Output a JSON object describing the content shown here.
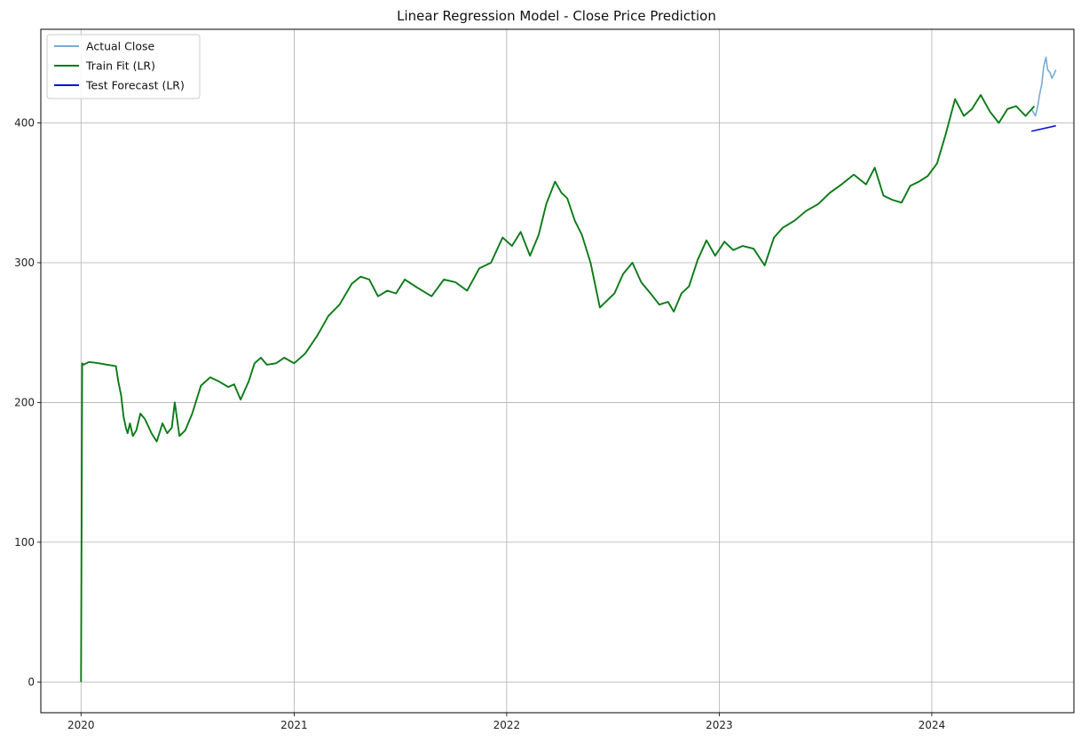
{
  "chart_data": {
    "type": "line",
    "title": "Linear Regression Model - Close Price Prediction",
    "xlabel": "",
    "ylabel": "",
    "xlim": [
      "2019-10-24",
      "2024-09-01"
    ],
    "ylim": [
      -22,
      467
    ],
    "x_ticks": [
      {
        "date": "2020-01-01",
        "label": "2020"
      },
      {
        "date": "2021-01-01",
        "label": "2021"
      },
      {
        "date": "2022-01-01",
        "label": "2022"
      },
      {
        "date": "2023-01-01",
        "label": "2023"
      },
      {
        "date": "2024-01-01",
        "label": "2024"
      }
    ],
    "y_ticks": [
      0,
      100,
      200,
      300,
      400
    ],
    "grid": true,
    "legend": "top-left",
    "series": [
      {
        "name": "Actual Close",
        "color": "#78abd6",
        "x": [
          "2024-06-20",
          "2024-06-27",
          "2024-07-01",
          "2024-07-04",
          "2024-07-08",
          "2024-07-11",
          "2024-07-15",
          "2024-07-18",
          "2024-07-22",
          "2024-07-25",
          "2024-07-29",
          "2024-08-01"
        ],
        "y": [
          410,
          405,
          412,
          420,
          428,
          440,
          447,
          438,
          436,
          432,
          435,
          438
        ]
      },
      {
        "name": "Train Fit (LR)",
        "color": "#0b7a17",
        "x": [
          "2020-01-01",
          "2020-01-03",
          "2020-01-05",
          "2020-01-15",
          "2020-02-01",
          "2020-02-15",
          "2020-03-01",
          "2020-03-05",
          "2020-03-10",
          "2020-03-14",
          "2020-03-18",
          "2020-03-21",
          "2020-03-25",
          "2020-03-30",
          "2020-04-05",
          "2020-04-12",
          "2020-04-20",
          "2020-05-01",
          "2020-05-10",
          "2020-05-20",
          "2020-05-28",
          "2020-06-05",
          "2020-06-10",
          "2020-06-18",
          "2020-06-28",
          "2020-07-10",
          "2020-07-25",
          "2020-08-10",
          "2020-08-25",
          "2020-09-10",
          "2020-09-20",
          "2020-10-01",
          "2020-10-15",
          "2020-10-25",
          "2020-11-05",
          "2020-11-15",
          "2020-12-01",
          "2020-12-15",
          "2021-01-01",
          "2021-01-20",
          "2021-02-10",
          "2021-03-01",
          "2021-03-20",
          "2021-04-10",
          "2021-04-25",
          "2021-05-10",
          "2021-05-25",
          "2021-06-10",
          "2021-06-25",
          "2021-07-10",
          "2021-08-01",
          "2021-08-25",
          "2021-09-15",
          "2021-10-05",
          "2021-10-25",
          "2021-11-15",
          "2021-12-05",
          "2021-12-25",
          "2022-01-10",
          "2022-01-25",
          "2022-02-10",
          "2022-02-25",
          "2022-03-10",
          "2022-03-25",
          "2022-04-05",
          "2022-04-15",
          "2022-04-28",
          "2022-05-10",
          "2022-05-25",
          "2022-06-10",
          "2022-06-20",
          "2022-07-05",
          "2022-07-20",
          "2022-08-05",
          "2022-08-20",
          "2022-09-05",
          "2022-09-20",
          "2022-10-05",
          "2022-10-15",
          "2022-10-28",
          "2022-11-10",
          "2022-11-25",
          "2022-12-10",
          "2022-12-25",
          "2023-01-10",
          "2023-01-25",
          "2023-02-10",
          "2023-03-01",
          "2023-03-20",
          "2023-04-05",
          "2023-04-20",
          "2023-05-10",
          "2023-05-30",
          "2023-06-20",
          "2023-07-10",
          "2023-07-30",
          "2023-08-20",
          "2023-09-10",
          "2023-09-25",
          "2023-10-10",
          "2023-10-25",
          "2023-11-10",
          "2023-11-25",
          "2023-12-10",
          "2023-12-25",
          "2024-01-10",
          "2024-01-25",
          "2024-02-10",
          "2024-02-25",
          "2024-03-10",
          "2024-03-25",
          "2024-04-10",
          "2024-04-25",
          "2024-05-10",
          "2024-05-25",
          "2024-06-10",
          "2024-06-25"
        ],
        "y": [
          0,
          228,
          227,
          229,
          228,
          227,
          226,
          215,
          205,
          190,
          182,
          178,
          185,
          176,
          180,
          192,
          188,
          178,
          172,
          185,
          178,
          182,
          200,
          176,
          180,
          192,
          212,
          218,
          215,
          211,
          213,
          202,
          215,
          228,
          232,
          227,
          228,
          232,
          228,
          235,
          248,
          262,
          270,
          285,
          290,
          288,
          276,
          280,
          278,
          288,
          282,
          276,
          288,
          286,
          280,
          296,
          300,
          318,
          312,
          322,
          305,
          320,
          342,
          358,
          350,
          346,
          330,
          320,
          300,
          268,
          272,
          278,
          292,
          300,
          286,
          278,
          270,
          272,
          265,
          278,
          283,
          302,
          316,
          305,
          315,
          309,
          312,
          310,
          298,
          318,
          325,
          330,
          337,
          342,
          350,
          356,
          363,
          356,
          368,
          348,
          345,
          343,
          355,
          358,
          362,
          371,
          392,
          417,
          405,
          410,
          420,
          408,
          400,
          410,
          412,
          405,
          412
        ]
      },
      {
        "name": "Test Forecast (LR)",
        "color": "#0a12d8",
        "x": [
          "2024-06-20",
          "2024-08-01"
        ],
        "y": [
          394,
          398
        ]
      }
    ]
  }
}
